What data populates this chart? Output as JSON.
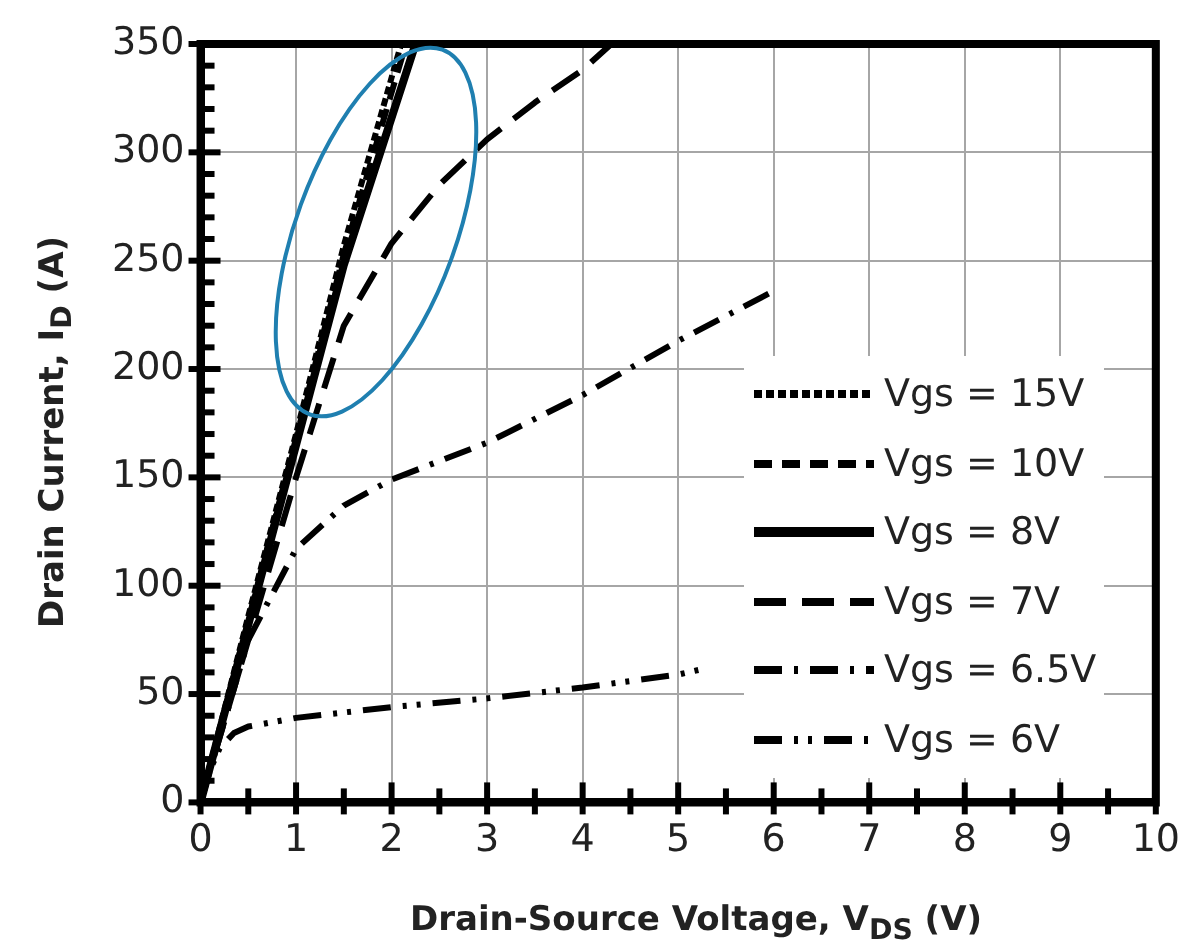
{
  "chart_data": {
    "type": "line",
    "xlabel": "Drain-Source Voltage, V$_{DS}$ (V)",
    "ylabel": "Drain Current, I$_{D}$ (A)",
    "xlim": [
      0,
      10
    ],
    "ylim": [
      0,
      350
    ],
    "xticks": [
      0,
      {
        "value": 0.5,
        "label": null
      },
      1,
      {
        "value": 1.5,
        "label": null
      },
      2,
      {
        "value": 2.5,
        "label": null
      },
      3,
      {
        "value": 3.5,
        "label": null
      },
      4,
      {
        "value": 4.5,
        "label": null
      },
      5,
      {
        "value": 5.5,
        "label": null
      },
      6,
      {
        "value": 6.5,
        "label": null
      },
      7,
      {
        "value": 7.5,
        "label": null
      },
      8,
      {
        "value": 8.5,
        "label": null
      },
      9,
      {
        "value": 9.5,
        "label": null
      },
      10
    ],
    "yticks": [
      0,
      {
        "value": 10,
        "label": null
      },
      {
        "value": 20,
        "label": null
      },
      {
        "value": 30,
        "label": null
      },
      {
        "value": 40,
        "label": null
      },
      50,
      {
        "value": 60,
        "label": null
      },
      {
        "value": 70,
        "label": null
      },
      {
        "value": 80,
        "label": null
      },
      {
        "value": 90,
        "label": null
      },
      100,
      {
        "value": 110,
        "label": null
      },
      {
        "value": 120,
        "label": null
      },
      {
        "value": 130,
        "label": null
      },
      {
        "value": 140,
        "label": null
      },
      150,
      {
        "value": 160,
        "label": null
      },
      {
        "value": 170,
        "label": null
      },
      {
        "value": 180,
        "label": null
      },
      {
        "value": 190,
        "label": null
      },
      200,
      {
        "value": 210,
        "label": null
      },
      {
        "value": 220,
        "label": null
      },
      {
        "value": 230,
        "label": null
      },
      {
        "value": 240,
        "label": null
      },
      250,
      {
        "value": 260,
        "label": null
      },
      {
        "value": 270,
        "label": null
      },
      {
        "value": 280,
        "label": null
      },
      {
        "value": 290,
        "label": null
      },
      300,
      {
        "value": 310,
        "label": null
      },
      {
        "value": 320,
        "label": null
      },
      {
        "value": 330,
        "label": null
      },
      {
        "value": 340,
        "label": null
      },
      350
    ],
    "grid": true,
    "legend": "right",
    "marker": "none",
    "series": [
      {
        "name": "Vgs = 15V",
        "color": "#000000",
        "line_style": "dotted",
        "x": [
          0,
          0.5,
          1,
          1.5,
          2.1
        ],
        "values": [
          0,
          86,
          170,
          257,
          350
        ]
      },
      {
        "name": "Vgs = 10V",
        "color": "#000000",
        "line_style": "dashed",
        "x": [
          0,
          0.5,
          1,
          1.5,
          2.15
        ],
        "values": [
          0,
          84,
          168,
          253,
          350
        ]
      },
      {
        "name": "Vgs = 8V",
        "color": "#000000",
        "line_style": "solid",
        "x": [
          0,
          0.5,
          1,
          1.5,
          2.25
        ],
        "values": [
          0,
          82,
          165,
          248,
          350
        ]
      },
      {
        "name": "Vgs = 7V",
        "color": "#000000",
        "line_style": "longdashed",
        "x": [
          0,
          0.5,
          1,
          1.5,
          2,
          2.5,
          3,
          3.5,
          4,
          4.3
        ],
        "values": [
          0,
          75,
          150,
          220,
          258,
          285,
          306,
          323,
          338,
          350
        ]
      },
      {
        "name": "Vgs = 6.5V",
        "color": "#000000",
        "line_style": "dashdot",
        "x": [
          0,
          0.5,
          1,
          1.5,
          2,
          3,
          4,
          5,
          6
        ],
        "values": [
          0,
          75,
          117,
          137,
          149,
          166,
          188,
          213,
          236
        ]
      },
      {
        "name": "Vgs = 6V",
        "color": "#000000",
        "line_style": "dashdotdot",
        "x": [
          0,
          0.1,
          0.2,
          0.35,
          0.5,
          1,
          2,
          3,
          4,
          5,
          5.3
        ],
        "values": [
          0,
          15,
          25,
          32,
          35,
          39,
          44,
          48,
          53,
          59,
          62
        ]
      }
    ]
  }
}
